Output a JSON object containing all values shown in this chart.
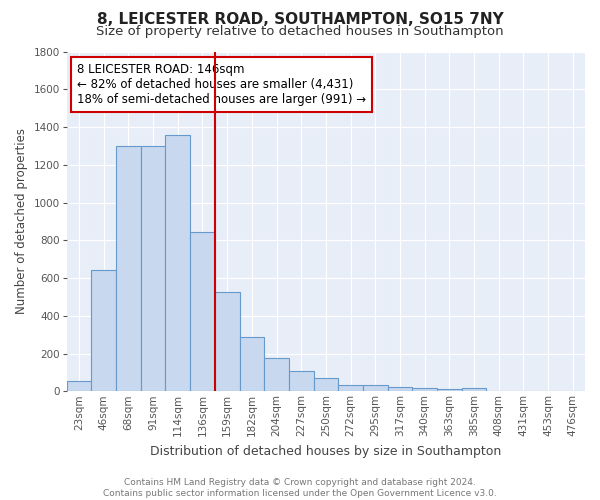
{
  "title": "8, LEICESTER ROAD, SOUTHAMPTON, SO15 7NY",
  "subtitle": "Size of property relative to detached houses in Southampton",
  "xlabel": "Distribution of detached houses by size in Southampton",
  "ylabel": "Number of detached properties",
  "bar_color": "#c8d8ee",
  "bar_edge_color": "#6699cc",
  "background_color": "#e8eef8",
  "fig_background": "#ffffff",
  "categories": [
    "23sqm",
    "46sqm",
    "68sqm",
    "91sqm",
    "114sqm",
    "136sqm",
    "159sqm",
    "182sqm",
    "204sqm",
    "227sqm",
    "250sqm",
    "272sqm",
    "295sqm",
    "317sqm",
    "340sqm",
    "363sqm",
    "385sqm",
    "408sqm",
    "431sqm",
    "453sqm",
    "476sqm"
  ],
  "values": [
    55,
    640,
    1300,
    1300,
    1360,
    845,
    525,
    285,
    175,
    110,
    70,
    35,
    35,
    25,
    15,
    10,
    15,
    0,
    0,
    0,
    0
  ],
  "vline_position": 5.5,
  "vline_color": "#cc0000",
  "annotation_text": "8 LEICESTER ROAD: 146sqm\n← 82% of detached houses are smaller (4,431)\n18% of semi-detached houses are larger (991) →",
  "annotation_box_color": "#ffffff",
  "annotation_border_color": "#cc0000",
  "ylim": [
    0,
    1800
  ],
  "yticks": [
    0,
    200,
    400,
    600,
    800,
    1000,
    1200,
    1400,
    1600,
    1800
  ],
  "footer_text": "Contains HM Land Registry data © Crown copyright and database right 2024.\nContains public sector information licensed under the Open Government Licence v3.0.",
  "grid_color": "#ffffff",
  "title_fontsize": 11,
  "subtitle_fontsize": 9.5,
  "xlabel_fontsize": 9,
  "ylabel_fontsize": 8.5,
  "tick_fontsize": 7.5,
  "annotation_fontsize": 8.5,
  "footer_fontsize": 6.5
}
